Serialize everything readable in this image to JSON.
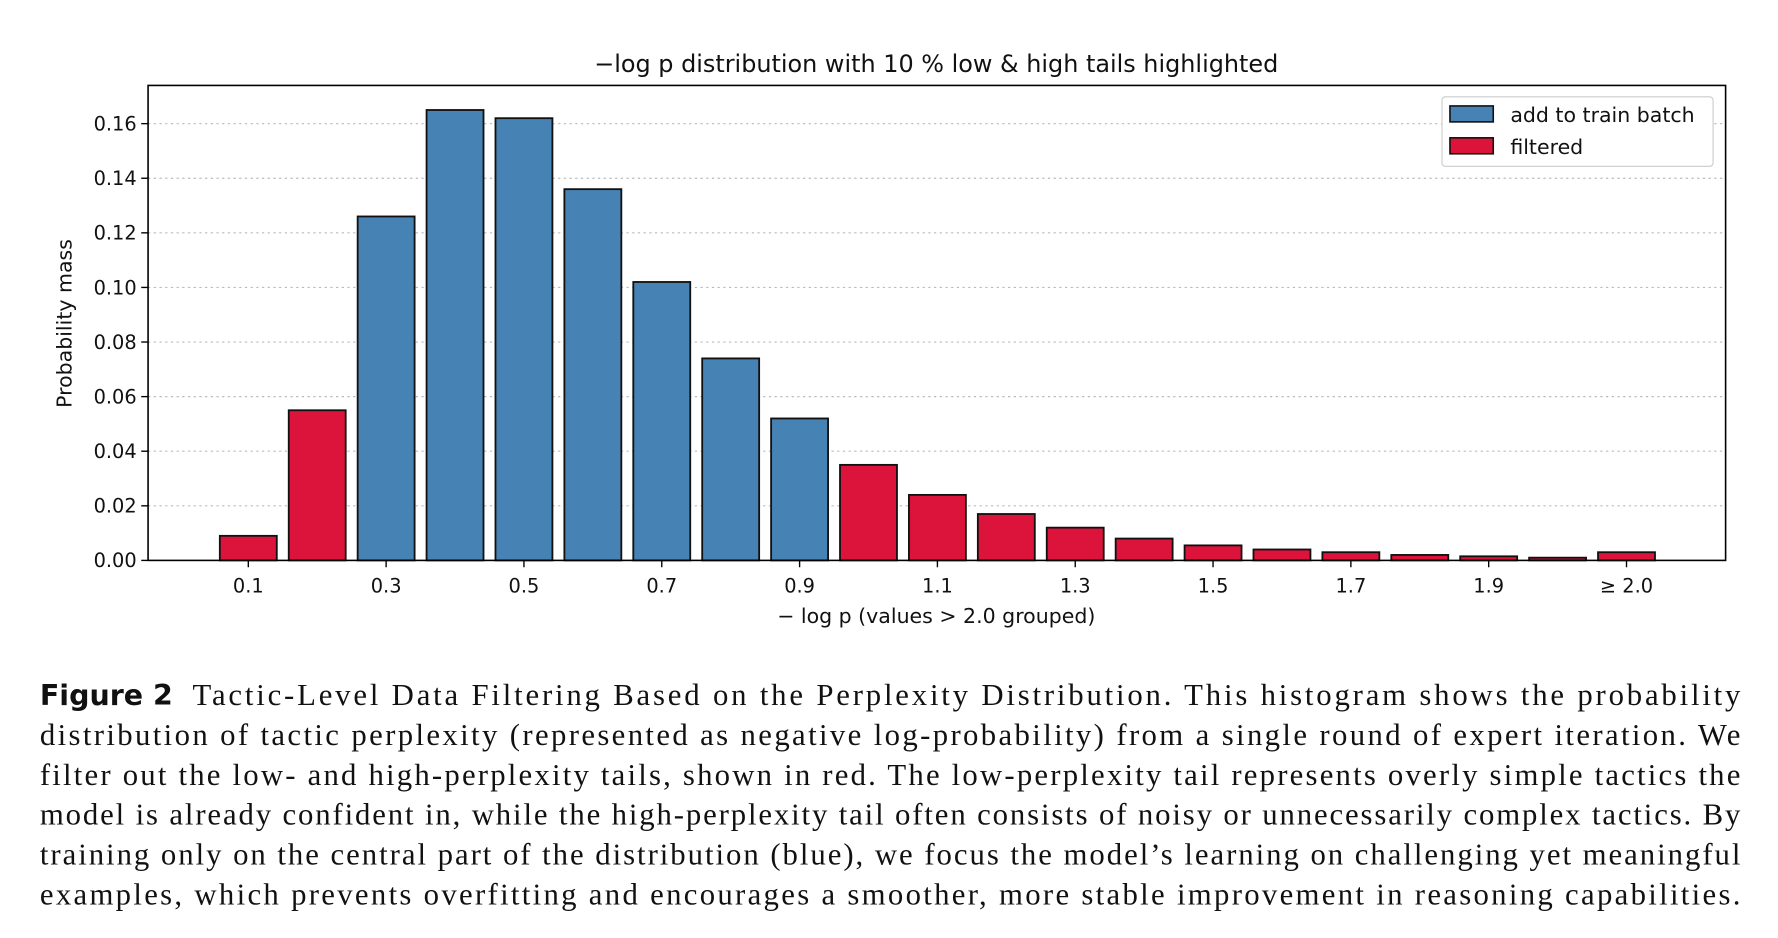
{
  "chart_data": {
    "type": "bar",
    "title": "−log p distribution with 10 % low & high tails highlighted",
    "x_label": "− log p  (values > 2.0 grouped)",
    "y_label": "Probability mass",
    "categories": [
      "0.1",
      null,
      "0.3",
      null,
      "0.5",
      null,
      "0.7",
      null,
      "0.9",
      null,
      "1.1",
      null,
      "1.3",
      null,
      "1.5",
      null,
      "1.7",
      null,
      "1.9",
      null,
      "≥ 2.0"
    ],
    "series": [
      {
        "name": "add to train batch",
        "color": "#4682b4",
        "values": [
          null,
          null,
          0.126,
          0.165,
          0.162,
          0.136,
          0.102,
          0.074,
          0.052,
          null,
          null,
          null,
          null,
          null,
          null,
          null,
          null,
          null,
          null,
          null,
          null
        ]
      },
      {
        "name": "filtered",
        "color": "#dc143c",
        "values": [
          0.009,
          0.055,
          null,
          null,
          null,
          null,
          null,
          null,
          null,
          0.035,
          0.024,
          0.017,
          0.012,
          0.008,
          0.0055,
          0.004,
          0.003,
          0.002,
          0.0015,
          0.001,
          0.003
        ]
      }
    ],
    "ylim": [
      0,
      0.174
    ],
    "yticks": [
      {
        "value": 0,
        "label": "0.00"
      },
      {
        "value": 0.02,
        "label": "0.02"
      },
      {
        "value": 0.04,
        "label": "0.04"
      },
      {
        "value": 0.06,
        "label": "0.06"
      },
      {
        "value": 0.08,
        "label": "0.08"
      },
      {
        "value": 0.1,
        "label": "0.10"
      },
      {
        "value": 0.12,
        "label": "0.12"
      },
      {
        "value": 0.14,
        "label": "0.14"
      },
      {
        "value": 0.16,
        "label": "0.16"
      }
    ],
    "grid": true,
    "legend": "upper right"
  },
  "caption": {
    "label": "Figure 2",
    "lines": [
      "Tactic-Level Data Filtering Based on the Perplexity Distribution. This histogram shows the probability",
      "distribution of tactic perplexity (represented as negative log-probability) from a single round of expert iteration. We",
      "filter out the low- and high-perplexity tails, shown in red. The low-perplexity tail represents overly simple tactics the",
      "model is already confident in, while the high-perplexity tail often consists of noisy or unnecessarily complex tactics. By",
      "training only on the central part of the distribution (blue), we focus the model’s learning on challenging yet meaningful",
      "examples, which prevents overfitting and encourages a smoother, more stable improvement in reasoning capabilities."
    ]
  }
}
